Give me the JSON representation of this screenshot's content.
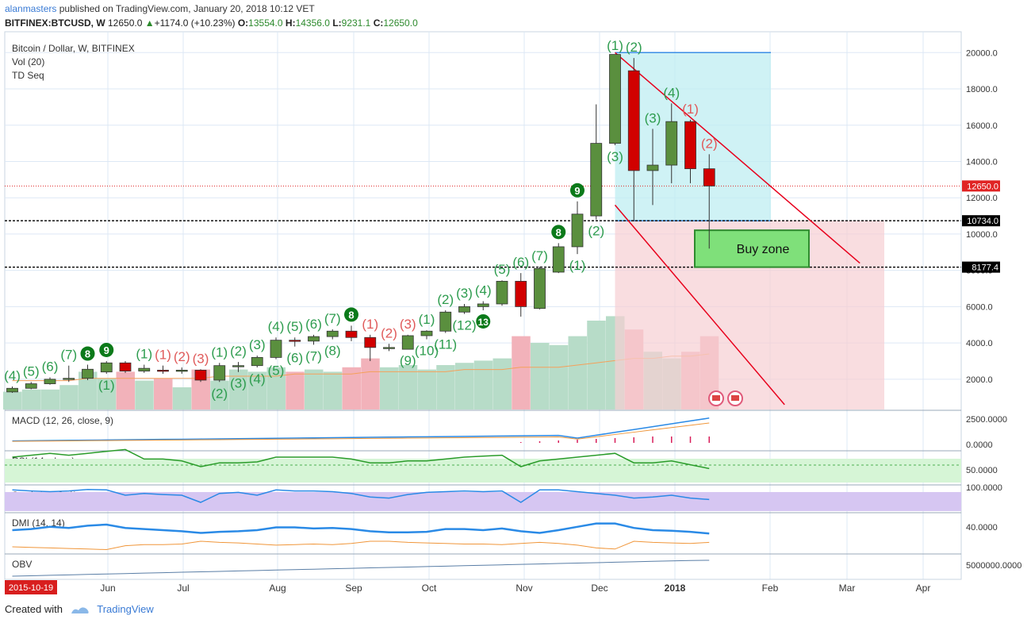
{
  "header": {
    "user": "alanmasters",
    "published": "published on TradingView.com, January 20, 2018 10:12 VET",
    "symbol": "BITFINEX:BTCUSD, W",
    "last": "12650.0",
    "arrow": "▲",
    "change": "+1174.0 (+10.23%)",
    "o_label": "O:",
    "o_val": "13554.0",
    "h_label": "H:",
    "h_val": "14356.0",
    "l_label": "L:",
    "l_val": "9231.1",
    "c_label": "C:",
    "c_val": "12650.0"
  },
  "footer": {
    "created_with": "Created with",
    "brand": "TradingView"
  },
  "chart_data": {
    "type": "candlestick",
    "title": "Bitcoin / Dollar, W, BITFINEX",
    "indicator_labels": [
      "Vol (20)",
      "TD Seq"
    ],
    "y_ticks": [
      2000,
      4000,
      6000,
      8000,
      10000,
      12000,
      14000,
      16000,
      18000,
      20000
    ],
    "y_tick_labels": [
      "2000.0",
      "4000.0",
      "6000.0",
      "8000.0",
      "10000.0",
      "12000.0",
      "14000.0",
      "16000.0",
      "18000.0",
      "20000.0"
    ],
    "price_tags": [
      {
        "value": 12650,
        "label": "12650.0",
        "color": "#e02424"
      },
      {
        "value": 10734,
        "label": "10734.0",
        "color": "#000000"
      },
      {
        "value": 8177.4,
        "label": "8177.4",
        "color": "#000000"
      }
    ],
    "x_ticks": [
      "Jun",
      "Jul",
      "Aug",
      "Sep",
      "Oct",
      "Nov",
      "Dec",
      "2018",
      "Feb",
      "Mar",
      "Apr"
    ],
    "x_start_label": "2015-10-19",
    "candles": [
      {
        "o": 1300,
        "h": 1600,
        "l": 1250,
        "c": 1500
      },
      {
        "o": 1500,
        "h": 1850,
        "l": 1450,
        "c": 1750
      },
      {
        "o": 1750,
        "h": 2100,
        "l": 1700,
        "c": 2000
      },
      {
        "o": 2000,
        "h": 2750,
        "l": 1850,
        "c": 2050
      },
      {
        "o": 2050,
        "h": 2800,
        "l": 1950,
        "c": 2550
      },
      {
        "o": 2400,
        "h": 3000,
        "l": 2300,
        "c": 2900
      },
      {
        "o": 2900,
        "h": 3000,
        "l": 2350,
        "c": 2450
      },
      {
        "o": 2450,
        "h": 2800,
        "l": 2350,
        "c": 2600
      },
      {
        "o": 2500,
        "h": 2750,
        "l": 2300,
        "c": 2450
      },
      {
        "o": 2450,
        "h": 2650,
        "l": 2300,
        "c": 2500
      },
      {
        "o": 2500,
        "h": 2550,
        "l": 1850,
        "c": 1950
      },
      {
        "o": 1950,
        "h": 2900,
        "l": 1850,
        "c": 2750
      },
      {
        "o": 2700,
        "h": 2950,
        "l": 2400,
        "c": 2750
      },
      {
        "o": 2750,
        "h": 3300,
        "l": 2650,
        "c": 3200
      },
      {
        "o": 3200,
        "h": 4300,
        "l": 3100,
        "c": 4150
      },
      {
        "o": 4150,
        "h": 4300,
        "l": 3800,
        "c": 4100
      },
      {
        "o": 4100,
        "h": 4450,
        "l": 3900,
        "c": 4350
      },
      {
        "o": 4350,
        "h": 4750,
        "l": 4200,
        "c": 4650
      },
      {
        "o": 4650,
        "h": 4950,
        "l": 4100,
        "c": 4300
      },
      {
        "o": 4300,
        "h": 4450,
        "l": 3000,
        "c": 3750
      },
      {
        "o": 3700,
        "h": 3950,
        "l": 3550,
        "c": 3750
      },
      {
        "o": 3650,
        "h": 4450,
        "l": 3650,
        "c": 4400
      },
      {
        "o": 4400,
        "h": 4700,
        "l": 4200,
        "c": 4650
      },
      {
        "o": 4650,
        "h": 5800,
        "l": 4550,
        "c": 5700
      },
      {
        "o": 5700,
        "h": 6150,
        "l": 5600,
        "c": 6000
      },
      {
        "o": 6000,
        "h": 6300,
        "l": 5800,
        "c": 6150
      },
      {
        "o": 6150,
        "h": 7450,
        "l": 6050,
        "c": 7400
      },
      {
        "o": 7400,
        "h": 7850,
        "l": 5450,
        "c": 6000
      },
      {
        "o": 5900,
        "h": 8200,
        "l": 5850,
        "c": 8100
      },
      {
        "o": 7900,
        "h": 9500,
        "l": 7850,
        "c": 9300
      },
      {
        "o": 9300,
        "h": 11800,
        "l": 8900,
        "c": 11100
      },
      {
        "o": 11000,
        "h": 17150,
        "l": 10800,
        "c": 15000
      },
      {
        "o": 15000,
        "h": 19800,
        "l": 14900,
        "c": 19900
      },
      {
        "o": 19000,
        "h": 19700,
        "l": 10700,
        "c": 13500
      },
      {
        "o": 13500,
        "h": 15800,
        "l": 11600,
        "c": 13800
      },
      {
        "o": 13800,
        "h": 17200,
        "l": 12800,
        "c": 16200
      },
      {
        "o": 16200,
        "h": 16300,
        "l": 12800,
        "c": 13600
      },
      {
        "o": 13600,
        "h": 14400,
        "l": 9200,
        "c": 12650
      }
    ],
    "volume": [
      0.08,
      0.09,
      0.09,
      0.11,
      0.17,
      0.14,
      0.17,
      0.13,
      0.14,
      0.1,
      0.18,
      0.13,
      0.18,
      0.17,
      0.19,
      0.17,
      0.18,
      0.17,
      0.19,
      0.23,
      0.19,
      0.2,
      0.18,
      0.2,
      0.21,
      0.22,
      0.23,
      0.33,
      0.3,
      0.29,
      0.33,
      0.4,
      0.42,
      0.36,
      0.26,
      0.23,
      0.26,
      0.33
    ],
    "volume_ma": [
      0.13,
      0.13,
      0.13,
      0.13,
      0.14,
      0.14,
      0.14,
      0.14,
      0.14,
      0.14,
      0.14,
      0.15,
      0.15,
      0.15,
      0.15,
      0.16,
      0.16,
      0.16,
      0.16,
      0.17,
      0.17,
      0.17,
      0.17,
      0.17,
      0.18,
      0.18,
      0.18,
      0.19,
      0.19,
      0.19,
      0.2,
      0.21,
      0.22,
      0.23,
      0.23,
      0.24,
      0.24,
      0.25
    ],
    "td_seq": [
      {
        "i": 0,
        "n": "4",
        "c": "g",
        "pos": "a"
      },
      {
        "i": 1,
        "n": "5",
        "c": "g",
        "pos": "a"
      },
      {
        "i": 2,
        "n": "6",
        "c": "g",
        "pos": "a"
      },
      {
        "i": 3,
        "n": "7",
        "c": "g",
        "pos": "a"
      },
      {
        "i": 4,
        "n": "8",
        "c": "G",
        "pos": "a"
      },
      {
        "i": 5,
        "n": "9",
        "c": "G",
        "pos": "a"
      },
      {
        "i": 5,
        "n": "1",
        "c": "g",
        "pos": "b"
      },
      {
        "i": 7,
        "n": "1",
        "c": "g",
        "pos": "a"
      },
      {
        "i": 8,
        "n": "1",
        "c": "r",
        "pos": "a"
      },
      {
        "i": 9,
        "n": "2",
        "c": "r",
        "pos": "a"
      },
      {
        "i": 10,
        "n": "3",
        "c": "r",
        "pos": "a"
      },
      {
        "i": 11,
        "n": "1",
        "c": "g",
        "pos": "a"
      },
      {
        "i": 11,
        "n": "2",
        "c": "g",
        "pos": "b"
      },
      {
        "i": 12,
        "n": "2",
        "c": "g",
        "pos": "a"
      },
      {
        "i": 12,
        "n": "3",
        "c": "g",
        "pos": "b"
      },
      {
        "i": 13,
        "n": "3",
        "c": "g",
        "pos": "a"
      },
      {
        "i": 13,
        "n": "4",
        "c": "g",
        "pos": "b"
      },
      {
        "i": 14,
        "n": "4",
        "c": "g",
        "pos": "a"
      },
      {
        "i": 14,
        "n": "5",
        "c": "g",
        "pos": "b"
      },
      {
        "i": 15,
        "n": "5",
        "c": "g",
        "pos": "a"
      },
      {
        "i": 15,
        "n": "6",
        "c": "g",
        "pos": "b"
      },
      {
        "i": 16,
        "n": "6",
        "c": "g",
        "pos": "a"
      },
      {
        "i": 16,
        "n": "7",
        "c": "g",
        "pos": "b"
      },
      {
        "i": 17,
        "n": "7",
        "c": "g",
        "pos": "a"
      },
      {
        "i": 17,
        "n": "8",
        "c": "g",
        "pos": "b"
      },
      {
        "i": 18,
        "n": "8",
        "c": "G",
        "pos": "a"
      },
      {
        "i": 19,
        "n": "1",
        "c": "r",
        "pos": "a"
      },
      {
        "i": 20,
        "n": "2",
        "c": "r",
        "pos": "a"
      },
      {
        "i": 21,
        "n": "3",
        "c": "r",
        "pos": "a"
      },
      {
        "i": 21,
        "n": "9",
        "c": "g",
        "pos": "b"
      },
      {
        "i": 22,
        "n": "1",
        "c": "g",
        "pos": "a"
      },
      {
        "i": 22,
        "n": "10",
        "c": "g",
        "pos": "b"
      },
      {
        "i": 23,
        "n": "2",
        "c": "g",
        "pos": "a"
      },
      {
        "i": 23,
        "n": "11",
        "c": "g",
        "pos": "b"
      },
      {
        "i": 24,
        "n": "3",
        "c": "g",
        "pos": "a"
      },
      {
        "i": 24,
        "n": "12",
        "c": "g",
        "pos": "b"
      },
      {
        "i": 25,
        "n": "4",
        "c": "g",
        "pos": "a"
      },
      {
        "i": 25,
        "n": "13",
        "c": "G",
        "pos": "b"
      },
      {
        "i": 26,
        "n": "5",
        "c": "g",
        "pos": "a"
      },
      {
        "i": 27,
        "n": "6",
        "c": "g",
        "pos": "a"
      },
      {
        "i": 28,
        "n": "7",
        "c": "g",
        "pos": "a"
      },
      {
        "i": 29,
        "n": "8",
        "c": "G",
        "pos": "a"
      },
      {
        "i": 30,
        "n": "9",
        "c": "G",
        "pos": "a"
      },
      {
        "i": 30,
        "n": "1",
        "c": "g",
        "pos": "b"
      },
      {
        "i": 31,
        "n": "2",
        "c": "g",
        "pos": "b"
      },
      {
        "i": 32,
        "n": "3",
        "c": "g",
        "pos": "b"
      },
      {
        "i": 32,
        "n": "1",
        "c": "g",
        "pos": "a"
      },
      {
        "i": 33,
        "n": "2",
        "c": "g",
        "pos": "a"
      },
      {
        "i": 34,
        "n": "3",
        "c": "g",
        "pos": "a"
      },
      {
        "i": 35,
        "n": "4",
        "c": "g",
        "pos": "a"
      },
      {
        "i": 36,
        "n": "1",
        "c": "r",
        "pos": "a"
      },
      {
        "i": 37,
        "n": "2",
        "c": "r",
        "pos": "a"
      }
    ],
    "buy_zone": {
      "label": "Buy zone",
      "top": 10734,
      "bottom": 8177.4
    },
    "channel": {
      "upper": [
        [
          32,
          20000
        ],
        [
          45,
          8400
        ]
      ],
      "lower": [
        [
          32,
          11600
        ],
        [
          41,
          600
        ]
      ]
    },
    "target_box": {
      "top": 20000,
      "bottom": 10734
    },
    "panes": [
      {
        "label": "MACD (12, 26, close, 9)",
        "ticks": [
          "2500.0000",
          "0.0000"
        ]
      },
      {
        "label": "RSI (14, close)",
        "ticks": [
          "50.0000"
        ]
      },
      {
        "label": "Stoch (14, 3, 1)",
        "ticks": [
          "100.0000"
        ]
      },
      {
        "label": "DMI (14, 14)",
        "ticks": [
          "40.0000"
        ]
      },
      {
        "label": "OBV",
        "ticks": [
          "5000000.0000"
        ]
      }
    ],
    "colors": {
      "up": "#5a8f3e",
      "down": "#d10000",
      "vol_up": "#b7dcc8",
      "vol_down": "#f2b2ba",
      "grid": "#dde8f5",
      "channel": "#e8001c"
    }
  }
}
